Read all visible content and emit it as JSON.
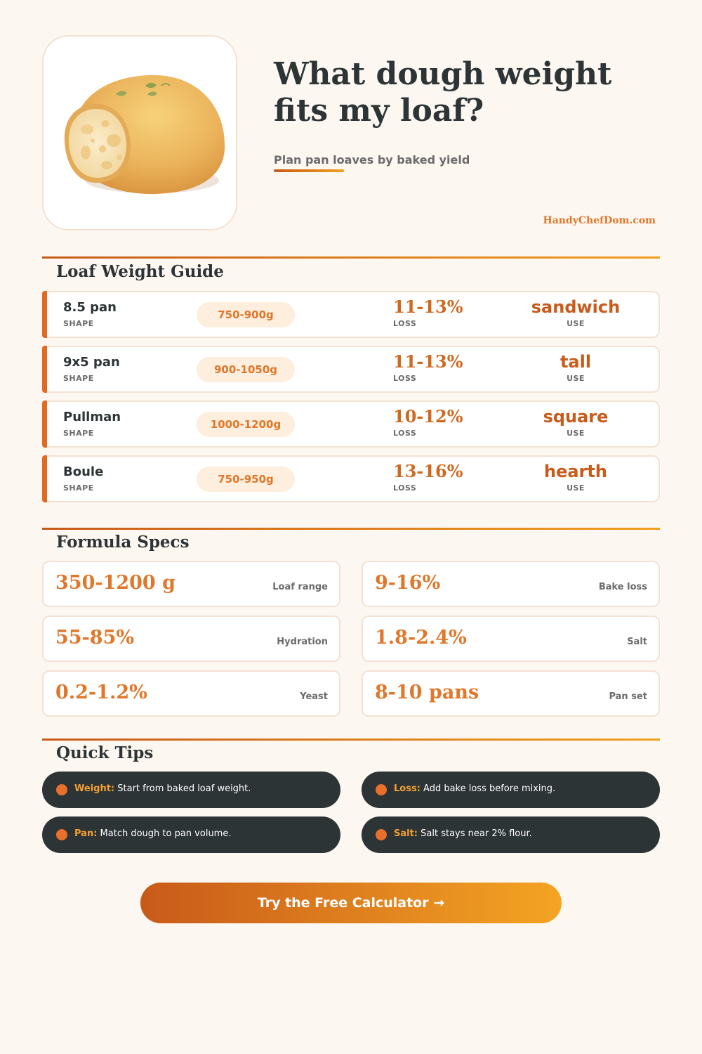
{
  "hero": {
    "image": "bread-loaf-illustration"
  },
  "header": {
    "title_line1": "What dough weight",
    "title_line2": "fits my loaf?",
    "subtitle": "Plan pan loaves by baked yield",
    "brand": "HandyChefDom.com"
  },
  "guide": {
    "title": "Loaf Weight Guide",
    "rows": [
      {
        "shape": "8.5 pan",
        "shape_label": "SHAPE",
        "weight": "750-900g",
        "loss": "11-13%",
        "loss_label": "LOSS",
        "use": "sandwich",
        "use_label": "USE"
      },
      {
        "shape": "9x5 pan",
        "shape_label": "SHAPE",
        "weight": "900-1050g",
        "loss": "11-13%",
        "loss_label": "LOSS",
        "use": "tall",
        "use_label": "USE"
      },
      {
        "shape": "Pullman",
        "shape_label": "SHAPE",
        "weight": "1000-1200g",
        "loss": "10-12%",
        "loss_label": "LOSS",
        "use": "square",
        "use_label": "USE"
      },
      {
        "shape": "Boule",
        "shape_label": "SHAPE",
        "weight": "750-950g",
        "loss": "13-16%",
        "loss_label": "LOSS",
        "use": "hearth",
        "use_label": "USE"
      }
    ]
  },
  "specs": {
    "title": "Formula Specs",
    "items": [
      {
        "value": "350-1200 g",
        "label": "Loaf range"
      },
      {
        "value": "9-16%",
        "label": "Bake loss"
      },
      {
        "value": "55-85%",
        "label": "Hydration"
      },
      {
        "value": "1.8-2.4%",
        "label": "Salt"
      },
      {
        "value": "0.2-1.2%",
        "label": "Yeast"
      },
      {
        "value": "8-10 pans",
        "label": "Pan set"
      }
    ]
  },
  "tips": {
    "title": "Quick Tips",
    "items": [
      {
        "key": "Weight:",
        "text": " Start from baked loaf weight."
      },
      {
        "key": "Loss:",
        "text": " Add bake loss before mixing."
      },
      {
        "key": "Pan:",
        "text": " Match dough to pan volume."
      },
      {
        "key": "Salt:",
        "text": " Salt stays near 2% flour."
      }
    ]
  },
  "cta": {
    "label": "Try the Free Calculator →"
  }
}
